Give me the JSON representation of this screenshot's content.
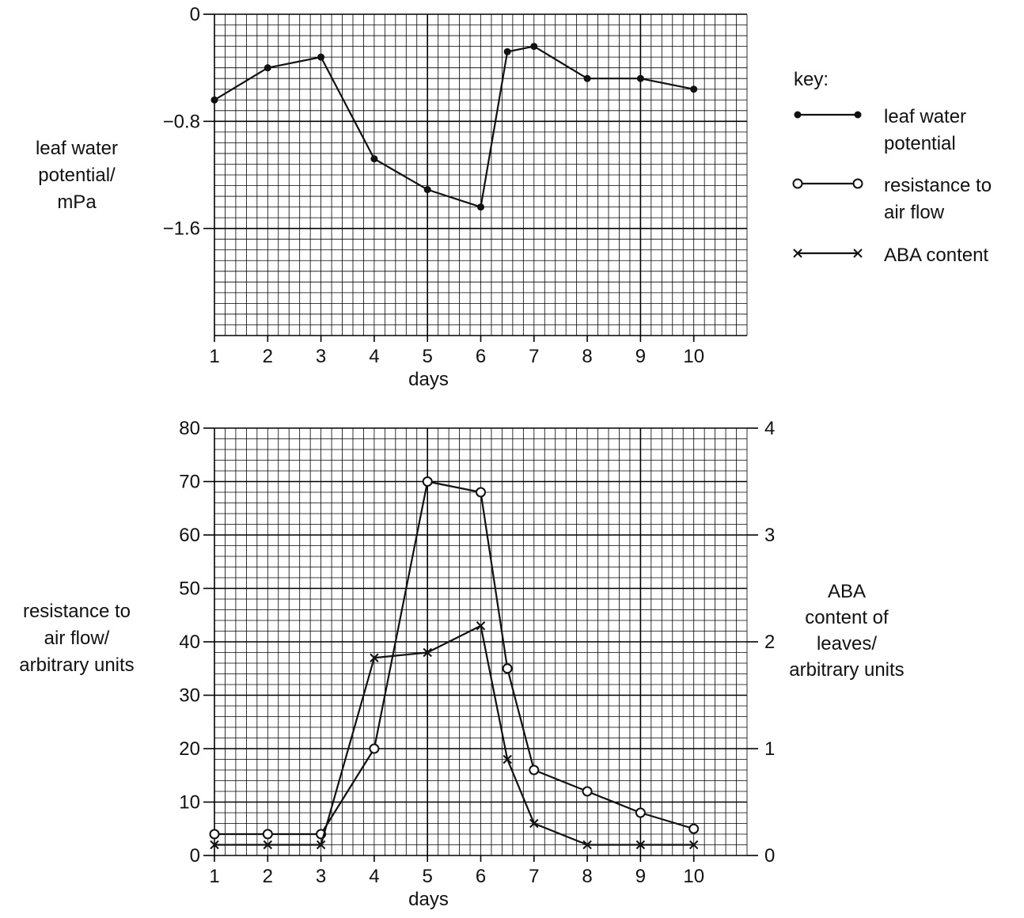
{
  "chart_data": [
    {
      "type": "line",
      "xlabel": "days",
      "ylabel": [
        "leaf water",
        "potential/",
        "mPa"
      ],
      "ylim": [
        -2.4,
        0
      ],
      "xlim": [
        1,
        11
      ],
      "y_ticks": [
        0,
        -0.8,
        -1.6
      ],
      "y_tick_labels": [
        "0",
        "−0.8",
        "−1.6"
      ],
      "x_ticks": [
        1,
        2,
        3,
        4,
        5,
        6,
        7,
        8,
        9,
        10
      ],
      "x_tick_labels": [
        "1",
        "2",
        "3",
        "4",
        "5",
        "6",
        "7",
        "8",
        "9",
        "10"
      ],
      "grid": true,
      "series": [
        {
          "name": "leaf water potential",
          "marker": "dot",
          "x": [
            1,
            2,
            3,
            4,
            5,
            6,
            6.5,
            7,
            8,
            9,
            10
          ],
          "y": [
            -0.64,
            -0.4,
            -0.32,
            -1.08,
            -1.31,
            -1.44,
            -0.28,
            -0.24,
            -0.48,
            -0.48,
            -0.56
          ]
        }
      ]
    },
    {
      "type": "line",
      "xlabel": "days",
      "ylabel": [
        "resistance to",
        "air flow/",
        "arbitrary units"
      ],
      "y2label": [
        "ABA",
        "content of",
        "leaves/",
        "arbitrary units"
      ],
      "ylim": [
        0,
        80
      ],
      "y2lim": [
        0,
        4
      ],
      "xlim": [
        1,
        11
      ],
      "y_ticks": [
        0,
        10,
        20,
        30,
        40,
        50,
        60,
        70,
        80
      ],
      "y_tick_labels": [
        "0",
        "10",
        "20",
        "30",
        "40",
        "50",
        "60",
        "70",
        "80"
      ],
      "y2_ticks": [
        0,
        1,
        2,
        3,
        4
      ],
      "y2_tick_labels": [
        "0",
        "1",
        "2",
        "3",
        "4"
      ],
      "x_ticks": [
        1,
        2,
        3,
        4,
        5,
        6,
        7,
        8,
        9,
        10
      ],
      "x_tick_labels": [
        "1",
        "2",
        "3",
        "4",
        "5",
        "6",
        "7",
        "8",
        "9",
        "10"
      ],
      "grid": true,
      "series": [
        {
          "name": "resistance to air flow",
          "marker": "circle",
          "axis": "left",
          "x": [
            1,
            2,
            3,
            4,
            5,
            6,
            6.5,
            7,
            8,
            9,
            10
          ],
          "y": [
            4,
            4,
            4,
            20,
            70,
            68,
            35,
            16,
            12,
            8,
            5
          ]
        },
        {
          "name": "ABA content",
          "marker": "cross",
          "axis": "right",
          "x": [
            1,
            2,
            3,
            4,
            5,
            6,
            6.5,
            7,
            8,
            9,
            10
          ],
          "y": [
            0.1,
            0.1,
            0.1,
            1.85,
            1.9,
            2.15,
            0.9,
            0.3,
            0.1,
            0.1,
            0.1
          ]
        }
      ]
    }
  ],
  "key": {
    "title": "key:",
    "items": [
      {
        "marker": "dot",
        "label": [
          "leaf water",
          "potential"
        ]
      },
      {
        "marker": "circle",
        "label": [
          "resistance to",
          "air flow"
        ]
      },
      {
        "marker": "cross",
        "label": [
          "ABA content"
        ]
      }
    ]
  }
}
